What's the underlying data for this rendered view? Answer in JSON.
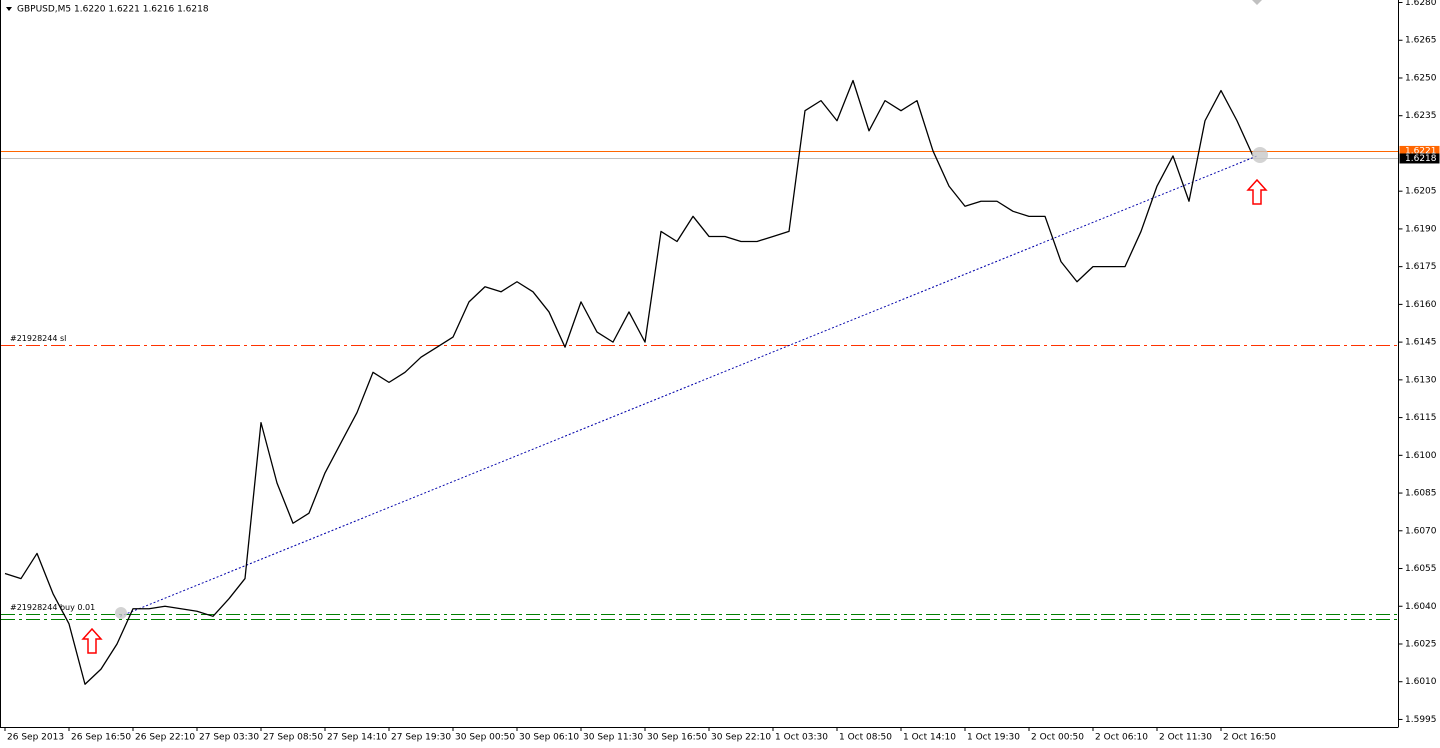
{
  "chart_data": {
    "type": "line",
    "title": "GBPUSD,M5  1.6220 1.6221 1.6216 1.6218",
    "categories": [
      "26 Sep 2013",
      null,
      null,
      null,
      "26 Sep 16:50",
      null,
      null,
      null,
      "26 Sep 22:10",
      null,
      null,
      null,
      "27 Sep 03:30",
      null,
      null,
      null,
      "27 Sep 08:50",
      null,
      null,
      null,
      "27 Sep 14:10",
      null,
      null,
      null,
      "27 Sep 19:30",
      null,
      null,
      null,
      "30 Sep 00:50",
      null,
      null,
      null,
      "30 Sep 06:10",
      null,
      null,
      null,
      "30 Sep 11:30",
      null,
      null,
      null,
      "30 Sep 16:50",
      null,
      null,
      null,
      "30 Sep 22:10",
      null,
      null,
      null,
      "1 Oct 03:30",
      null,
      null,
      null,
      "1 Oct 08:50",
      null,
      null,
      null,
      "1 Oct 14:10",
      null,
      null,
      null,
      "1 Oct 19:30",
      null,
      null,
      null,
      "2 Oct 00:50",
      null,
      null,
      null,
      "2 Oct 06:10",
      null,
      null,
      null,
      "2 Oct 11:30",
      null,
      null,
      null,
      "2 Oct 16:50",
      null,
      null
    ],
    "values": [
      1.6053,
      1.6051,
      1.6061,
      1.6045,
      1.6033,
      1.6009,
      1.6015,
      1.6025,
      1.6039,
      1.6039,
      1.604,
      1.6039,
      1.6038,
      1.6036,
      1.6043,
      1.6051,
      1.6113,
      1.6089,
      1.6073,
      1.6077,
      1.6093,
      1.6105,
      1.6117,
      1.6133,
      1.6129,
      1.6133,
      1.6139,
      1.6143,
      1.6147,
      1.6161,
      1.6167,
      1.6165,
      1.6169,
      1.6165,
      1.6157,
      1.6143,
      1.6161,
      1.6149,
      1.6145,
      1.6157,
      1.6145,
      1.6189,
      1.6185,
      1.6195,
      1.6187,
      1.6187,
      1.6185,
      1.6185,
      1.6187,
      1.6189,
      1.6237,
      1.6241,
      1.6233,
      1.6249,
      1.6229,
      1.6241,
      1.6237,
      1.6241,
      1.6221,
      1.6207,
      1.6199,
      1.6201,
      1.6201,
      1.6197,
      1.6195,
      1.6195,
      1.6177,
      1.6169,
      1.6175,
      1.6175,
      1.6175,
      1.6189,
      1.6207,
      1.6219,
      1.6201,
      1.6233,
      1.6245,
      1.6233,
      1.6219
    ],
    "color": "#000000",
    "ylim": [
      1.5992,
      1.6281
    ],
    "yticks": [
      1.5995,
      {
        "value": 1.601,
        "label": "1.6010"
      },
      1.6025,
      {
        "value": 1.604,
        "label": "1.6040"
      },
      1.6055,
      {
        "value": 1.607,
        "label": "1.6070"
      },
      1.6085,
      {
        "value": 1.61,
        "label": "1.6100"
      },
      1.6115,
      {
        "value": 1.613,
        "label": "1.6130"
      },
      1.6145,
      {
        "value": 1.616,
        "label": "1.6160"
      },
      1.6175,
      {
        "value": 1.619,
        "label": "1.6190"
      },
      1.6205,
      1.6235,
      {
        "value": 1.625,
        "label": "1.6250"
      },
      1.6265,
      {
        "value": 1.628,
        "label": "1.6280"
      }
    ],
    "price_lines": [
      {
        "value": 1.6221,
        "color": "#ff6600"
      },
      {
        "value": 1.6218,
        "color": "#c0c0c0"
      }
    ],
    "orders": [
      {
        "name": "#21928244 sl",
        "value": 1.6144,
        "color": "#ff3300"
      },
      {
        "name": "#21928244 buy 0.01",
        "value": 1.6037,
        "color": "#008000"
      }
    ],
    "order_line_2": {
      "value": 1.6035,
      "color": "#008000"
    },
    "trendline": {
      "x": [
        7.2,
        78.25
      ],
      "values": [
        1.6036,
        1.6219
      ],
      "color": "#0000aa"
    }
  }
}
